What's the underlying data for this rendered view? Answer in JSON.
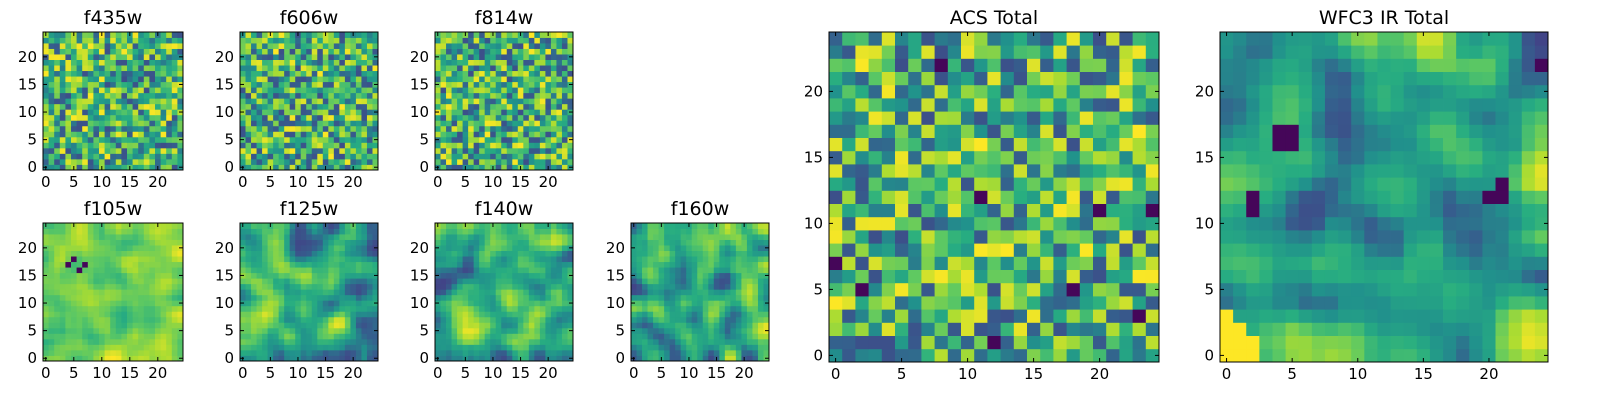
{
  "chart_data": [
    {
      "type": "heatmap",
      "title": "f435w",
      "nx": 25,
      "ny": 25,
      "xlim": [
        0,
        25
      ],
      "ylim": [
        0,
        25
      ],
      "xticks": [
        0,
        5,
        10,
        15,
        20
      ],
      "yticks": [
        0,
        5,
        10,
        15,
        20
      ],
      "colormap": "viridis",
      "texture": "fine",
      "seed": 11
    },
    {
      "type": "heatmap",
      "title": "f606w",
      "nx": 25,
      "ny": 25,
      "xlim": [
        0,
        25
      ],
      "ylim": [
        0,
        25
      ],
      "xticks": [
        0,
        5,
        10,
        15,
        20
      ],
      "yticks": [
        0,
        5,
        10,
        15,
        20
      ],
      "colormap": "viridis",
      "texture": "fine",
      "seed": 23
    },
    {
      "type": "heatmap",
      "title": "f814w",
      "nx": 25,
      "ny": 25,
      "xlim": [
        0,
        25
      ],
      "ylim": [
        0,
        25
      ],
      "xticks": [
        0,
        5,
        10,
        15,
        20
      ],
      "yticks": [
        0,
        5,
        10,
        15,
        20
      ],
      "colormap": "viridis",
      "texture": "fine",
      "seed": 37
    },
    {
      "type": "heatmap",
      "title": "f105w",
      "nx": 25,
      "ny": 25,
      "xlim": [
        0,
        25
      ],
      "ylim": [
        0,
        25
      ],
      "xticks": [
        0,
        5,
        10,
        15,
        20
      ],
      "yticks": [
        0,
        5,
        10,
        15,
        20
      ],
      "colormap": "viridis",
      "texture": "smooth-bright",
      "seed": 41,
      "dark_spots": [
        [
          4,
          17
        ],
        [
          5,
          18
        ],
        [
          6,
          16
        ],
        [
          7,
          17
        ]
      ]
    },
    {
      "type": "heatmap",
      "title": "f125w",
      "nx": 25,
      "ny": 25,
      "xlim": [
        0,
        25
      ],
      "ylim": [
        0,
        25
      ],
      "xticks": [
        0,
        5,
        10,
        15,
        20
      ],
      "yticks": [
        0,
        5,
        10,
        15,
        20
      ],
      "colormap": "viridis",
      "texture": "smooth",
      "seed": 53
    },
    {
      "type": "heatmap",
      "title": "f140w",
      "nx": 25,
      "ny": 25,
      "xlim": [
        0,
        25
      ],
      "ylim": [
        0,
        25
      ],
      "xticks": [
        0,
        5,
        10,
        15,
        20
      ],
      "yticks": [
        0,
        5,
        10,
        15,
        20
      ],
      "colormap": "viridis",
      "texture": "smooth",
      "seed": 67
    },
    {
      "type": "heatmap",
      "title": "f160w",
      "nx": 25,
      "ny": 25,
      "xlim": [
        0,
        25
      ],
      "ylim": [
        0,
        25
      ],
      "xticks": [
        0,
        5,
        10,
        15,
        20
      ],
      "yticks": [
        0,
        5,
        10,
        15,
        20
      ],
      "colormap": "viridis",
      "texture": "smooth",
      "seed": 79
    },
    {
      "type": "heatmap",
      "title": "ACS Total",
      "nx": 25,
      "ny": 25,
      "xlim": [
        0,
        25
      ],
      "ylim": [
        0,
        25
      ],
      "xticks": [
        0,
        5,
        10,
        15,
        20
      ],
      "yticks": [
        0,
        5,
        10,
        15,
        20
      ],
      "colormap": "viridis",
      "texture": "fine",
      "seed": 97,
      "dark_spots": [
        [
          8,
          22
        ],
        [
          11,
          12
        ],
        [
          20,
          11
        ],
        [
          24,
          11
        ],
        [
          0,
          7
        ],
        [
          2,
          5
        ],
        [
          23,
          3
        ],
        [
          18,
          5
        ],
        [
          12,
          1
        ]
      ]
    },
    {
      "type": "heatmap",
      "title": "WFC3 IR Total",
      "nx": 25,
      "ny": 25,
      "xlim": [
        0,
        25
      ],
      "ylim": [
        0,
        25
      ],
      "xticks": [
        0,
        5,
        10,
        15,
        20
      ],
      "yticks": [
        0,
        5,
        10,
        15,
        20
      ],
      "colormap": "viridis",
      "texture": "smooth",
      "seed": 103,
      "dark_spots": [
        [
          4,
          17
        ],
        [
          5,
          17
        ],
        [
          4,
          16
        ],
        [
          5,
          16
        ],
        [
          2,
          11
        ],
        [
          2,
          12
        ],
        [
          20,
          12
        ],
        [
          21,
          13
        ],
        [
          24,
          22
        ],
        [
          21,
          12
        ]
      ],
      "bright_spots": [
        [
          0,
          0
        ],
        [
          1,
          0
        ],
        [
          2,
          0
        ],
        [
          0,
          1
        ],
        [
          1,
          1
        ],
        [
          0,
          2
        ],
        [
          1,
          2
        ],
        [
          2,
          1
        ],
        [
          0,
          3
        ]
      ]
    }
  ]
}
